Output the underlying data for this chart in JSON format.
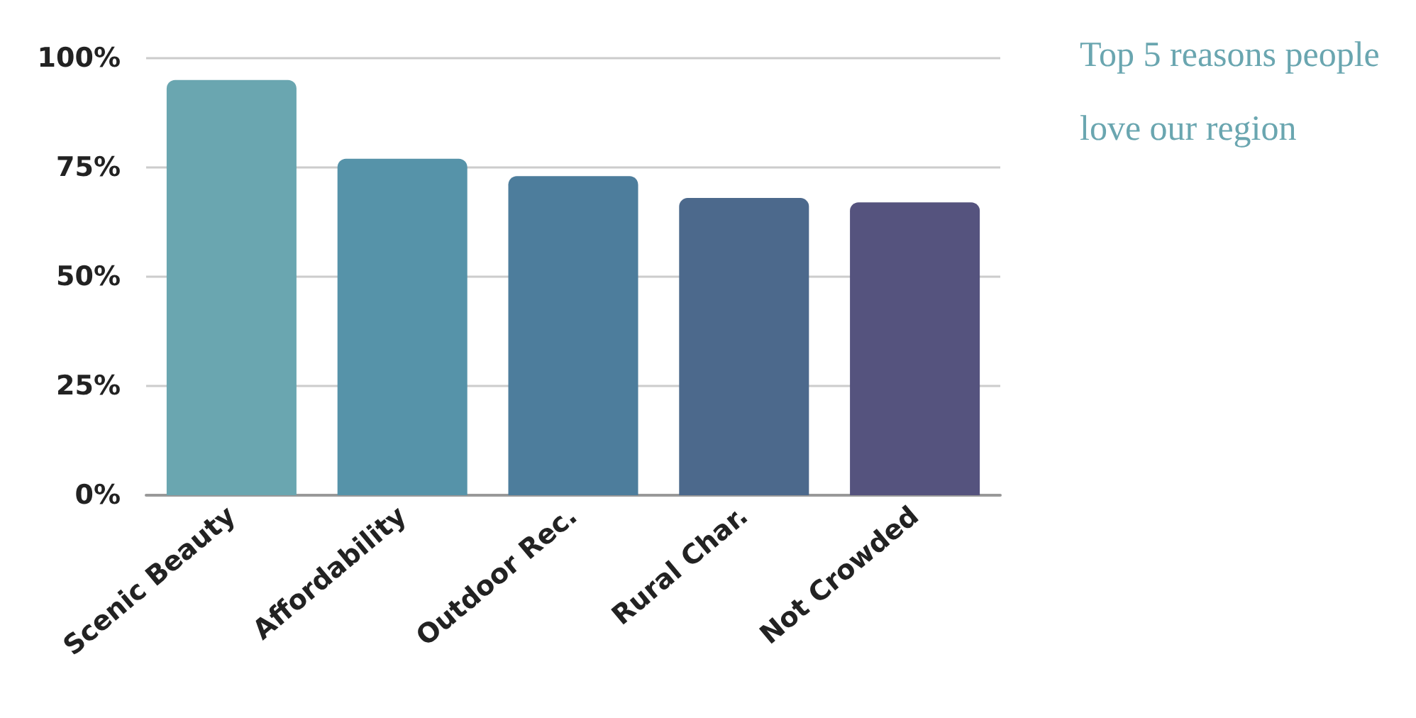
{
  "chart_data": {
    "type": "bar",
    "title": "Top 5 reasons people love our region",
    "categories": [
      "Scenic Beauty",
      "Affordability",
      "Outdoor Rec.",
      "Rural Char.",
      "Not Crowded"
    ],
    "values": [
      95,
      77,
      73,
      68,
      67
    ],
    "colors": [
      "#6aa6b0",
      "#5693a9",
      "#4d7d9c",
      "#4c698c",
      "#55537e"
    ],
    "ylim": [
      0,
      100
    ],
    "yticks": [
      {
        "value": 0,
        "label": "0%"
      },
      {
        "value": 25,
        "label": "25%"
      },
      {
        "value": 50,
        "label": "50%"
      },
      {
        "value": 75,
        "label": "75%"
      },
      {
        "value": 100,
        "label": "100%"
      }
    ],
    "grid": "y"
  }
}
